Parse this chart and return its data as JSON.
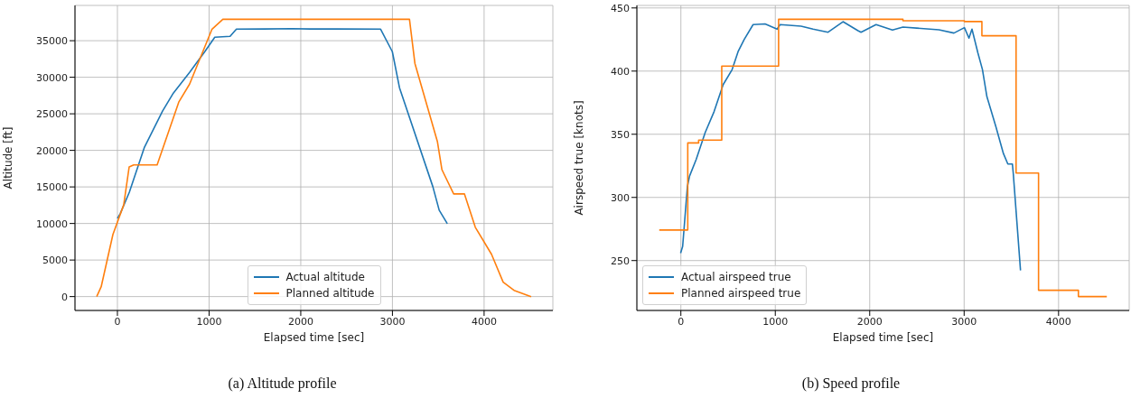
{
  "chart_data": [
    {
      "type": "line",
      "xlabel": "Elapsed time [sec]",
      "ylabel": "Altitude [ft]",
      "xlim": [
        -463,
        4750
      ],
      "xticks": [
        0,
        1000,
        2000,
        3000,
        4000
      ],
      "ylim": [
        -1896,
        39826
      ],
      "yticks": [
        0,
        5000,
        10000,
        15000,
        20000,
        25000,
        30000,
        35000
      ],
      "grid": true,
      "legend": "bottom",
      "annotations": [
        "(a) Altitude profile"
      ],
      "series": [
        {
          "name": "Actual altitude",
          "color": "#1f77b4",
          "x": [
            0,
            30,
            130,
            295,
            492,
            610,
            787,
            953,
            1062,
            1229,
            1298,
            1600,
            1900,
            2100,
            2400,
            2871,
            2999,
            3077,
            3441,
            3510,
            3599
          ],
          "values": [
            10700,
            11330,
            14280,
            20440,
            25370,
            27830,
            30660,
            33500,
            35470,
            35590,
            36580,
            36600,
            36650,
            36600,
            36600,
            36580,
            33500,
            28570,
            15030,
            11820,
            9980
          ]
        },
        {
          "name": "Planned altitude",
          "color": "#ff7f0e",
          "x": [
            -226,
            -177,
            -49,
            69,
            128,
            177,
            433,
            669,
            787,
            1032,
            1150,
            3186,
            3245,
            3491,
            3540,
            3668,
            3786,
            3904,
            4081,
            4208,
            4326,
            4513
          ],
          "values": [
            0,
            1350,
            8500,
            12560,
            17730,
            18000,
            18000,
            26600,
            29060,
            36580,
            37930,
            37930,
            31900,
            21180,
            17360,
            14040,
            14040,
            9480,
            5790,
            1970,
            860,
            0
          ]
        }
      ]
    },
    {
      "type": "line",
      "xlabel": "Elapsed time [sec]",
      "ylabel": "Airspeed true [knots]",
      "xlim": [
        -466,
        4748
      ],
      "xticks": [
        0,
        1000,
        2000,
        3000,
        4000
      ],
      "ylim": [
        210.5,
        452
      ],
      "yticks": [
        250,
        300,
        350,
        400,
        450
      ],
      "grid": true,
      "legend": "bottom left",
      "annotations": [
        "(b) Speed profile"
      ],
      "series": [
        {
          "name": "Actual airspeed true",
          "color": "#1f77b4",
          "x": [
            -3,
            19,
            69,
            92,
            162,
            257,
            352,
            448,
            543,
            606,
            670,
            765,
            892,
            1019,
            1051,
            1273,
            1400,
            1559,
            1717,
            1876,
            1908,
            2067,
            2241,
            2352,
            2733,
            2892,
            3003,
            3051,
            3083,
            3146,
            3194,
            3241,
            3336,
            3416,
            3463,
            3511,
            3520,
            3597
          ],
          "values": [
            255.9,
            261.2,
            308.6,
            316.9,
            330,
            351.3,
            368,
            389.3,
            401.2,
            415.4,
            424.9,
            436.8,
            437.3,
            433.2,
            436.8,
            435.6,
            433.2,
            430.8,
            439.1,
            432,
            430.8,
            436.8,
            432.5,
            434.9,
            432.7,
            430.1,
            434.4,
            426.1,
            433.2,
            414.3,
            401.2,
            379.8,
            356.1,
            334.7,
            326.4,
            326.4,
            319.3,
            242.2
          ]
        },
        {
          "name": "Planned airspeed true",
          "type": "step",
          "color": "#ff7f0e",
          "x": [
            -229,
            73,
            188,
            433,
            1035,
            2352,
            3003,
            3188,
            3550,
            3788,
            4210,
            4511
          ],
          "values": [
            274.2,
            343.1,
            345.4,
            404.0,
            441.0,
            439.9,
            439.2,
            428.0,
            319.3,
            226.5,
            221.5,
            221.5
          ]
        }
      ]
    }
  ]
}
